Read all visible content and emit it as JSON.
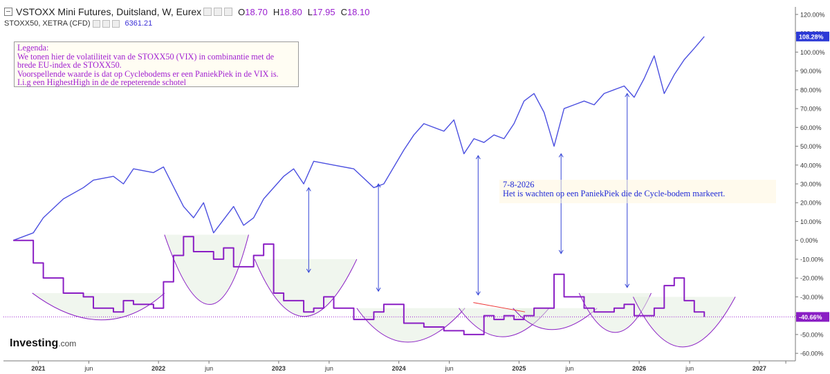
{
  "header": {
    "title": "VSTOXX Mini Futures, Duitsland, W, Eurex",
    "open_label": "O",
    "open": "18.70",
    "high_label": "H",
    "high": "18.80",
    "low_label": "L",
    "low": "17.95",
    "close_label": "C",
    "close": "18.10"
  },
  "overlay": {
    "name": "STOXX50, XETRA (CFD)",
    "value": "6361.21"
  },
  "legend": {
    "lines": [
      "Legenda:",
      "We tonen hier de volatiliteit van de STOXX50 (VIX) in combinantie met de",
      "brede EU-index de STOXX50.",
      "Voorspellende waarde is dat op Cyclebodems er een PaniekPiek in de VIX is.",
      "I.i.g een HighestHigh in de de repeterende schotel"
    ]
  },
  "note": {
    "date": "7-8-2026",
    "text": "Het is wachten op een PaniekPiek die de Cycle-bodem markeert."
  },
  "logo": {
    "brand": "Investing",
    "suffix": ".com"
  },
  "chart_data": {
    "type": "line",
    "y_axis": {
      "ticks": [
        "120.00%",
        "110.00%",
        "100.00%",
        "90.00%",
        "80.00%",
        "70.00%",
        "60.00%",
        "50.00%",
        "40.00%",
        "30.00%",
        "20.00%",
        "10.00%",
        "0.00%",
        "-10.00%",
        "-20.00%",
        "-30.00%",
        "-40.00%",
        "-50.00%",
        "-60.00%"
      ],
      "range": [
        -64,
        124
      ],
      "labels": {
        "overlay_last": "108.28%",
        "vix_last": "-40.66%"
      }
    },
    "x_axis": {
      "ticks": [
        "2021",
        "jun",
        "2022",
        "jun",
        "2023",
        "jun",
        "2024",
        "jun",
        "2025",
        "jun",
        "2026",
        "jun",
        "2027"
      ]
    },
    "series": [
      {
        "name": "STOXX50, XETRA (CFD)",
        "color": "#4b4fe0",
        "x": [
          "2020-10",
          "2020-12",
          "2021-01",
          "2021-03",
          "2021-05",
          "2021-06",
          "2021-08",
          "2021-09",
          "2021-10",
          "2021-12",
          "2022-01",
          "2022-03",
          "2022-04",
          "2022-05",
          "2022-06",
          "2022-08",
          "2022-09",
          "2022-10",
          "2022-11",
          "2023-01",
          "2023-02",
          "2023-03",
          "2023-04",
          "2023-06",
          "2023-08",
          "2023-10",
          "2023-11",
          "2024-01",
          "2024-02",
          "2024-03",
          "2024-05",
          "2024-06",
          "2024-07",
          "2024-08",
          "2024-09",
          "2024-10",
          "2024-11",
          "2024-12",
          "2025-01",
          "2025-02",
          "2025-03",
          "2025-04",
          "2025-05",
          "2025-06",
          "2025-07",
          "2025-08",
          "2025-09",
          "2025-10",
          "2025-11",
          "2025-12",
          "2026-01",
          "2026-02",
          "2026-03",
          "2026-04",
          "2026-05",
          "2026-06",
          "2026-07"
        ],
        "values": [
          0,
          4,
          12,
          22,
          28,
          32,
          34,
          30,
          38,
          36,
          39,
          18,
          12,
          20,
          4,
          18,
          8,
          12,
          22,
          34,
          38,
          30,
          42,
          40,
          38,
          28,
          30,
          48,
          56,
          62,
          58,
          64,
          46,
          54,
          52,
          56,
          54,
          62,
          74,
          78,
          68,
          50,
          70,
          72,
          74,
          72,
          78,
          80,
          82,
          76,
          86,
          98,
          78,
          88,
          96,
          102,
          108.28
        ]
      },
      {
        "name": "VSTOXX Mini Futures",
        "color": "#8a1ec4",
        "x": [
          "2020-10",
          "2020-12",
          "2021-01",
          "2021-03",
          "2021-05",
          "2021-06",
          "2021-08",
          "2021-09",
          "2021-10",
          "2021-12",
          "2022-01",
          "2022-02",
          "2022-03",
          "2022-04",
          "2022-06",
          "2022-07",
          "2022-08",
          "2022-10",
          "2022-11",
          "2022-12",
          "2023-01",
          "2023-03",
          "2023-04",
          "2023-05",
          "2023-06",
          "2023-08",
          "2023-10",
          "2023-11",
          "2024-01",
          "2024-03",
          "2024-05",
          "2024-07",
          "2024-09",
          "2024-10",
          "2024-11",
          "2024-12",
          "2025-01",
          "2025-02",
          "2025-03",
          "2025-04",
          "2025-05",
          "2025-07",
          "2025-08",
          "2025-10",
          "2025-11",
          "2025-12",
          "2026-01",
          "2026-02",
          "2026-03",
          "2026-04",
          "2026-05",
          "2026-06",
          "2026-07"
        ],
        "values": [
          0,
          -12,
          -20,
          -28,
          -30,
          -36,
          -38,
          -32,
          -34,
          -36,
          -22,
          -8,
          2,
          -6,
          -10,
          -4,
          -14,
          -8,
          -2,
          -28,
          -32,
          -38,
          -36,
          -30,
          -36,
          -42,
          -38,
          -34,
          -44,
          -46,
          -48,
          -50,
          -40,
          -42,
          -40,
          -42,
          -40,
          -36,
          -36,
          -18,
          -30,
          -36,
          -38,
          -36,
          -34,
          -40,
          -40,
          -36,
          -24,
          -20,
          -32,
          -38,
          -40.66
        ]
      }
    ]
  }
}
